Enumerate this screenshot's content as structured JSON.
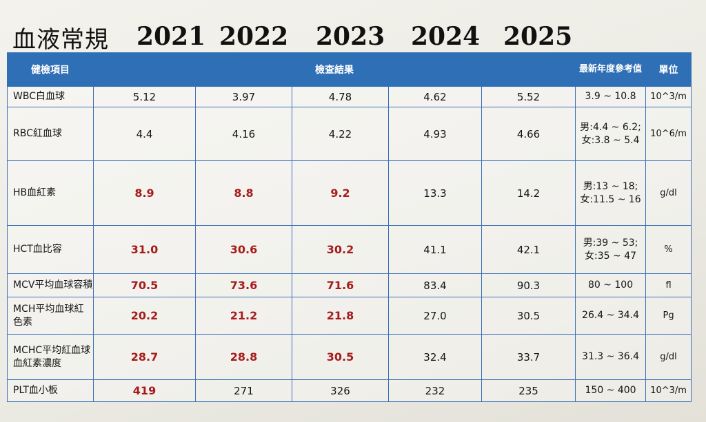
{
  "title": "血液常規",
  "years": [
    "2021",
    "2022",
    "2023",
    "2024",
    "2025"
  ],
  "header": {
    "item": "健檢項目",
    "results": "檢查結果",
    "reference": "最新年度參考值",
    "unit": "單位"
  },
  "rows": [
    {
      "item": "WBC白血球",
      "values": [
        "5.12",
        "3.97",
        "4.78",
        "4.62",
        "5.52"
      ],
      "low": [
        false,
        false,
        false,
        false,
        false
      ],
      "ref": "3.9 ~ 10.8",
      "unit": "10^3/m"
    },
    {
      "item": "RBC紅血球",
      "values": [
        "4.4",
        "4.16",
        "4.22",
        "4.93",
        "4.66"
      ],
      "low": [
        false,
        false,
        false,
        false,
        false
      ],
      "ref": "男:4.4 ~ 6.2; 女:3.8 ~ 5.4",
      "unit": "10^6/m"
    },
    {
      "item": "HB血紅素",
      "values": [
        "8.9",
        "8.8",
        "9.2",
        "13.3",
        "14.2"
      ],
      "low": [
        true,
        true,
        true,
        false,
        false
      ],
      "ref": "男:13 ~ 18; 女:11.5 ~ 16",
      "unit": "g/dl"
    },
    {
      "item": "HCT血比容",
      "values": [
        "31.0",
        "30.6",
        "30.2",
        "41.1",
        "42.1"
      ],
      "low": [
        true,
        true,
        true,
        false,
        false
      ],
      "ref": "男:39 ~ 53; 女:35 ~ 47",
      "unit": "%"
    },
    {
      "item": "MCV平均血球容積",
      "values": [
        "70.5",
        "73.6",
        "71.6",
        "83.4",
        "90.3"
      ],
      "low": [
        true,
        true,
        true,
        false,
        false
      ],
      "ref": "80 ~ 100",
      "unit": "fl"
    },
    {
      "item": "MCH平均血球紅色素",
      "values": [
        "20.2",
        "21.2",
        "21.8",
        "27.0",
        "30.5"
      ],
      "low": [
        true,
        true,
        true,
        false,
        false
      ],
      "ref": "26.4 ~ 34.4",
      "unit": "Pg"
    },
    {
      "item": "MCHC平均紅血球血紅素濃度",
      "values": [
        "28.7",
        "28.8",
        "30.5",
        "32.4",
        "33.7"
      ],
      "low": [
        true,
        true,
        true,
        false,
        false
      ],
      "ref": "31.3 ~ 36.4",
      "unit": "g/dl"
    },
    {
      "item": "PLT血小板",
      "values": [
        "419",
        "271",
        "326",
        "232",
        "235"
      ],
      "low": [
        true,
        false,
        false,
        false,
        false
      ],
      "ref": "150 ~ 400",
      "unit": "10^3/m"
    }
  ],
  "colors": {
    "header_bg": "#2f6fb5",
    "border": "#3b70b8",
    "abnormal": "#a51c1c"
  }
}
